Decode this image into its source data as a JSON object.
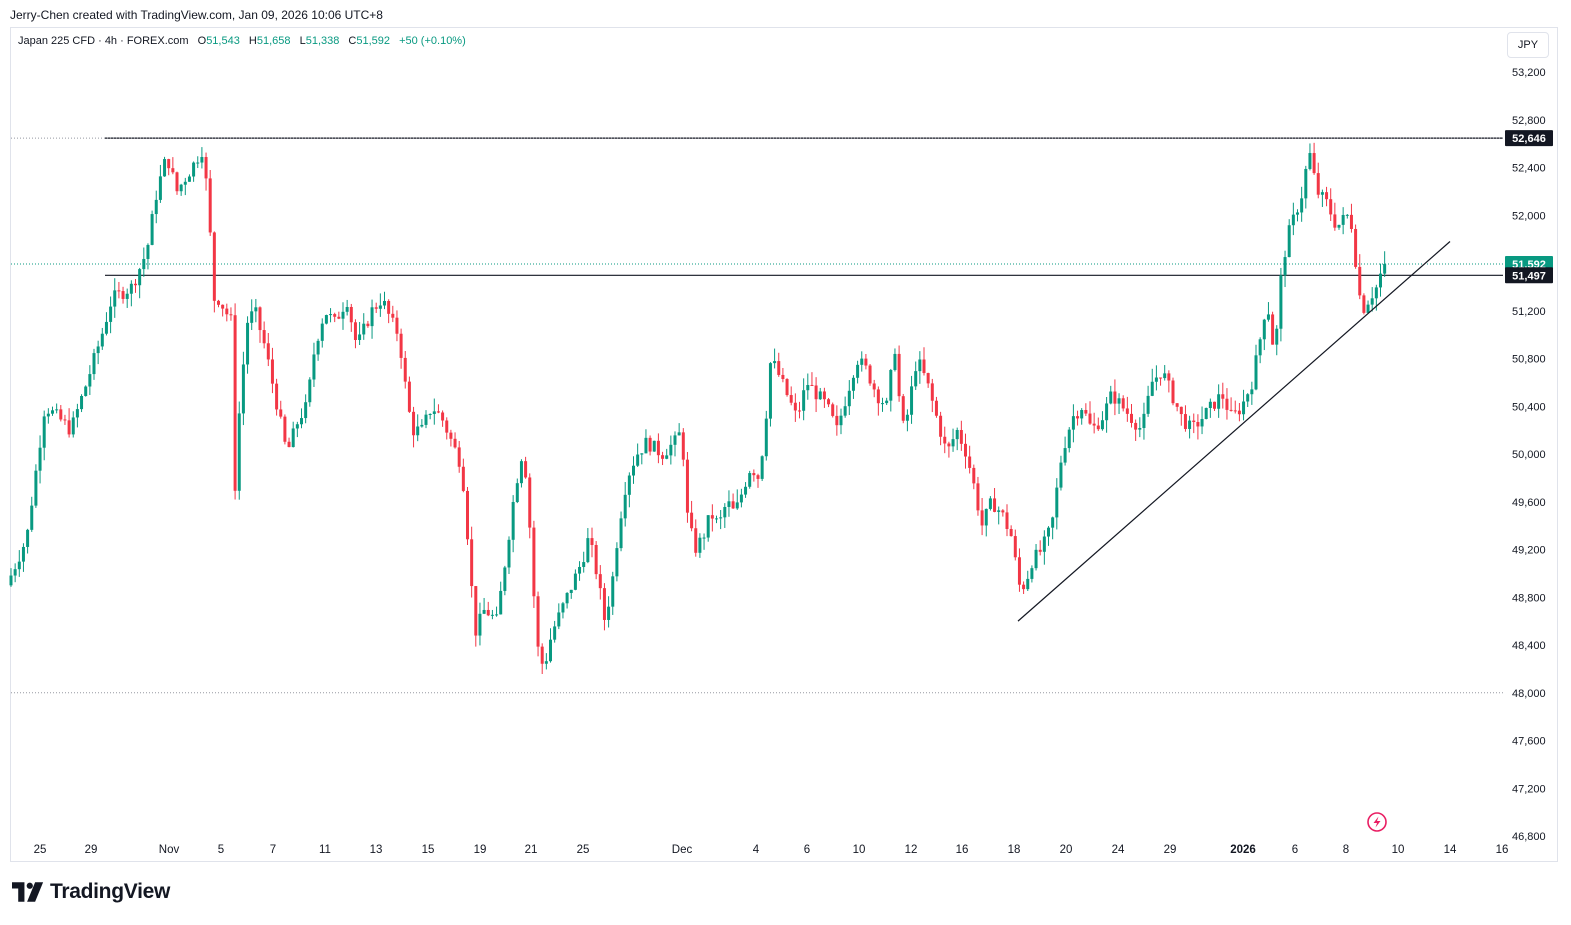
{
  "header": {
    "attribution": "Jerry-Chen created with TradingView.com, Jan 09, 2026 10:06 UTC+8"
  },
  "legend": {
    "symbol": "Japan 225 CFD · 4h · FOREX.com",
    "open_label": "O",
    "open": "51,543",
    "high_label": "H",
    "high": "51,658",
    "low_label": "L",
    "low": "51,338",
    "close_label": "C",
    "close": "51,592",
    "change": "+50 (+0.10%)"
  },
  "currency": "JPY",
  "footer": {
    "brand": "TradingView"
  },
  "colors": {
    "up": "#089981",
    "down": "#f23645",
    "line": "#131722",
    "dotted": "#9598a1",
    "last_price": "#089981"
  },
  "icons": {
    "flash": "flash-icon",
    "logo": "tradingview-logo-icon"
  },
  "chart_data": {
    "type": "candlestick",
    "title": "Japan 225 CFD · 4h · FOREX.com",
    "ylabel": "JPY",
    "ylim": [
      46800,
      53400
    ],
    "y_ticks": [
      "53,200",
      "52,800",
      "52,400",
      "52,000",
      "51,600",
      "51,200",
      "50,800",
      "50,400",
      "50,000",
      "49,600",
      "49,200",
      "48,800",
      "48,400",
      "48,000",
      "47,600",
      "47,200",
      "46,800"
    ],
    "x_ticks": [
      "25",
      "29",
      "Nov",
      "5",
      "7",
      "11",
      "13",
      "15",
      "19",
      "21",
      "25",
      "Dec",
      "4",
      "6",
      "10",
      "12",
      "16",
      "18",
      "20",
      "24",
      "29",
      "2026",
      "6",
      "8",
      "10",
      "14",
      "16"
    ],
    "price_labels": [
      {
        "text": "52,646",
        "value": 52646,
        "style": "black"
      },
      {
        "text": "51,592",
        "value": 51592,
        "style": "green"
      },
      {
        "text": "51,497",
        "value": 51497,
        "style": "black"
      }
    ],
    "horizontal_lines": [
      {
        "value": 52646,
        "style": "solid",
        "x_start_tick": "29"
      },
      {
        "value": 51497,
        "style": "solid",
        "x_start_tick": "29"
      },
      {
        "value": 51592,
        "style": "dotted"
      },
      {
        "value": 52646,
        "style": "dotted"
      },
      {
        "value": 48000,
        "style": "dotted"
      }
    ],
    "trendline": {
      "from": {
        "date": "Dec 18",
        "price": 48600
      },
      "to": {
        "date": "Jan 13",
        "price": 51780
      }
    },
    "anchors": [
      [
        0,
        48900
      ],
      [
        20,
        49300
      ],
      [
        38,
        50400
      ],
      [
        52,
        50300
      ],
      [
        64,
        50200
      ],
      [
        80,
        50600
      ],
      [
        95,
        51000
      ],
      [
        105,
        51300
      ],
      [
        125,
        51400
      ],
      [
        140,
        51700
      ],
      [
        150,
        52200
      ],
      [
        160,
        52500
      ],
      [
        170,
        52200
      ],
      [
        185,
        52400
      ],
      [
        195,
        52550
      ],
      [
        202,
        52100
      ],
      [
        206,
        51300
      ],
      [
        212,
        51300
      ],
      [
        225,
        51100
      ],
      [
        228,
        49700
      ],
      [
        232,
        50300
      ],
      [
        240,
        51100
      ],
      [
        248,
        51200
      ],
      [
        258,
        50900
      ],
      [
        268,
        50500
      ],
      [
        280,
        50000
      ],
      [
        292,
        50300
      ],
      [
        300,
        50400
      ],
      [
        308,
        50900
      ],
      [
        318,
        51200
      ],
      [
        328,
        51100
      ],
      [
        340,
        51300
      ],
      [
        350,
        50900
      ],
      [
        365,
        51200
      ],
      [
        375,
        51300
      ],
      [
        385,
        51100
      ],
      [
        392,
        51000
      ],
      [
        398,
        50600
      ],
      [
        405,
        50200
      ],
      [
        415,
        50200
      ],
      [
        425,
        50400
      ],
      [
        435,
        50300
      ],
      [
        445,
        50100
      ],
      [
        455,
        49900
      ],
      [
        462,
        49200
      ],
      [
        468,
        48500
      ],
      [
        478,
        48700
      ],
      [
        490,
        48600
      ],
      [
        500,
        49200
      ],
      [
        508,
        49700
      ],
      [
        515,
        50000
      ],
      [
        520,
        49800
      ],
      [
        525,
        49100
      ],
      [
        530,
        48400
      ],
      [
        537,
        48200
      ],
      [
        545,
        48500
      ],
      [
        555,
        48700
      ],
      [
        565,
        48900
      ],
      [
        575,
        49100
      ],
      [
        582,
        49300
      ],
      [
        590,
        49000
      ],
      [
        598,
        48600
      ],
      [
        605,
        48900
      ],
      [
        612,
        49400
      ],
      [
        620,
        49800
      ],
      [
        630,
        50000
      ],
      [
        640,
        50100
      ],
      [
        655,
        50000
      ],
      [
        668,
        50100
      ],
      [
        675,
        50200
      ],
      [
        680,
        49500
      ],
      [
        688,
        49200
      ],
      [
        696,
        49300
      ],
      [
        704,
        49500
      ],
      [
        712,
        49400
      ],
      [
        720,
        49600
      ],
      [
        728,
        49500
      ],
      [
        736,
        49700
      ],
      [
        744,
        49900
      ],
      [
        752,
        49800
      ],
      [
        758,
        50200
      ],
      [
        764,
        50800
      ],
      [
        770,
        50700
      ],
      [
        780,
        50500
      ],
      [
        790,
        50300
      ],
      [
        800,
        50600
      ],
      [
        810,
        50500
      ],
      [
        820,
        50400
      ],
      [
        830,
        50200
      ],
      [
        840,
        50500
      ],
      [
        850,
        50800
      ],
      [
        860,
        50700
      ],
      [
        870,
        50500
      ],
      [
        880,
        50400
      ],
      [
        888,
        50900
      ],
      [
        895,
        50200
      ],
      [
        900,
        50300
      ],
      [
        910,
        50800
      ],
      [
        920,
        50600
      ],
      [
        930,
        50300
      ],
      [
        940,
        50000
      ],
      [
        950,
        50200
      ],
      [
        960,
        50000
      ],
      [
        968,
        49700
      ],
      [
        975,
        49400
      ],
      [
        985,
        49600
      ],
      [
        995,
        49500
      ],
      [
        1005,
        49300
      ],
      [
        1012,
        48900
      ],
      [
        1018,
        48900
      ],
      [
        1025,
        49100
      ],
      [
        1035,
        49200
      ],
      [
        1045,
        49400
      ],
      [
        1055,
        50000
      ],
      [
        1065,
        50300
      ],
      [
        1075,
        50400
      ],
      [
        1085,
        50200
      ],
      [
        1095,
        50300
      ],
      [
        1105,
        50500
      ],
      [
        1115,
        50400
      ],
      [
        1125,
        50300
      ],
      [
        1135,
        50200
      ],
      [
        1145,
        50600
      ],
      [
        1155,
        50700
      ],
      [
        1165,
        50500
      ],
      [
        1175,
        50300
      ],
      [
        1185,
        50200
      ],
      [
        1195,
        50300
      ],
      [
        1205,
        50400
      ],
      [
        1215,
        50500
      ],
      [
        1225,
        50300
      ],
      [
        1235,
        50400
      ],
      [
        1245,
        50600
      ],
      [
        1252,
        50900
      ],
      [
        1260,
        51300
      ],
      [
        1268,
        50800
      ],
      [
        1273,
        51400
      ],
      [
        1280,
        51800
      ],
      [
        1288,
        52000
      ],
      [
        1296,
        52200
      ],
      [
        1302,
        52550
      ],
      [
        1310,
        52200
      ],
      [
        1320,
        52100
      ],
      [
        1330,
        51900
      ],
      [
        1340,
        52000
      ],
      [
        1346,
        51900
      ],
      [
        1350,
        51500
      ],
      [
        1355,
        51200
      ],
      [
        1362,
        51300
      ],
      [
        1370,
        51400
      ],
      [
        1377,
        51592
      ]
    ]
  }
}
